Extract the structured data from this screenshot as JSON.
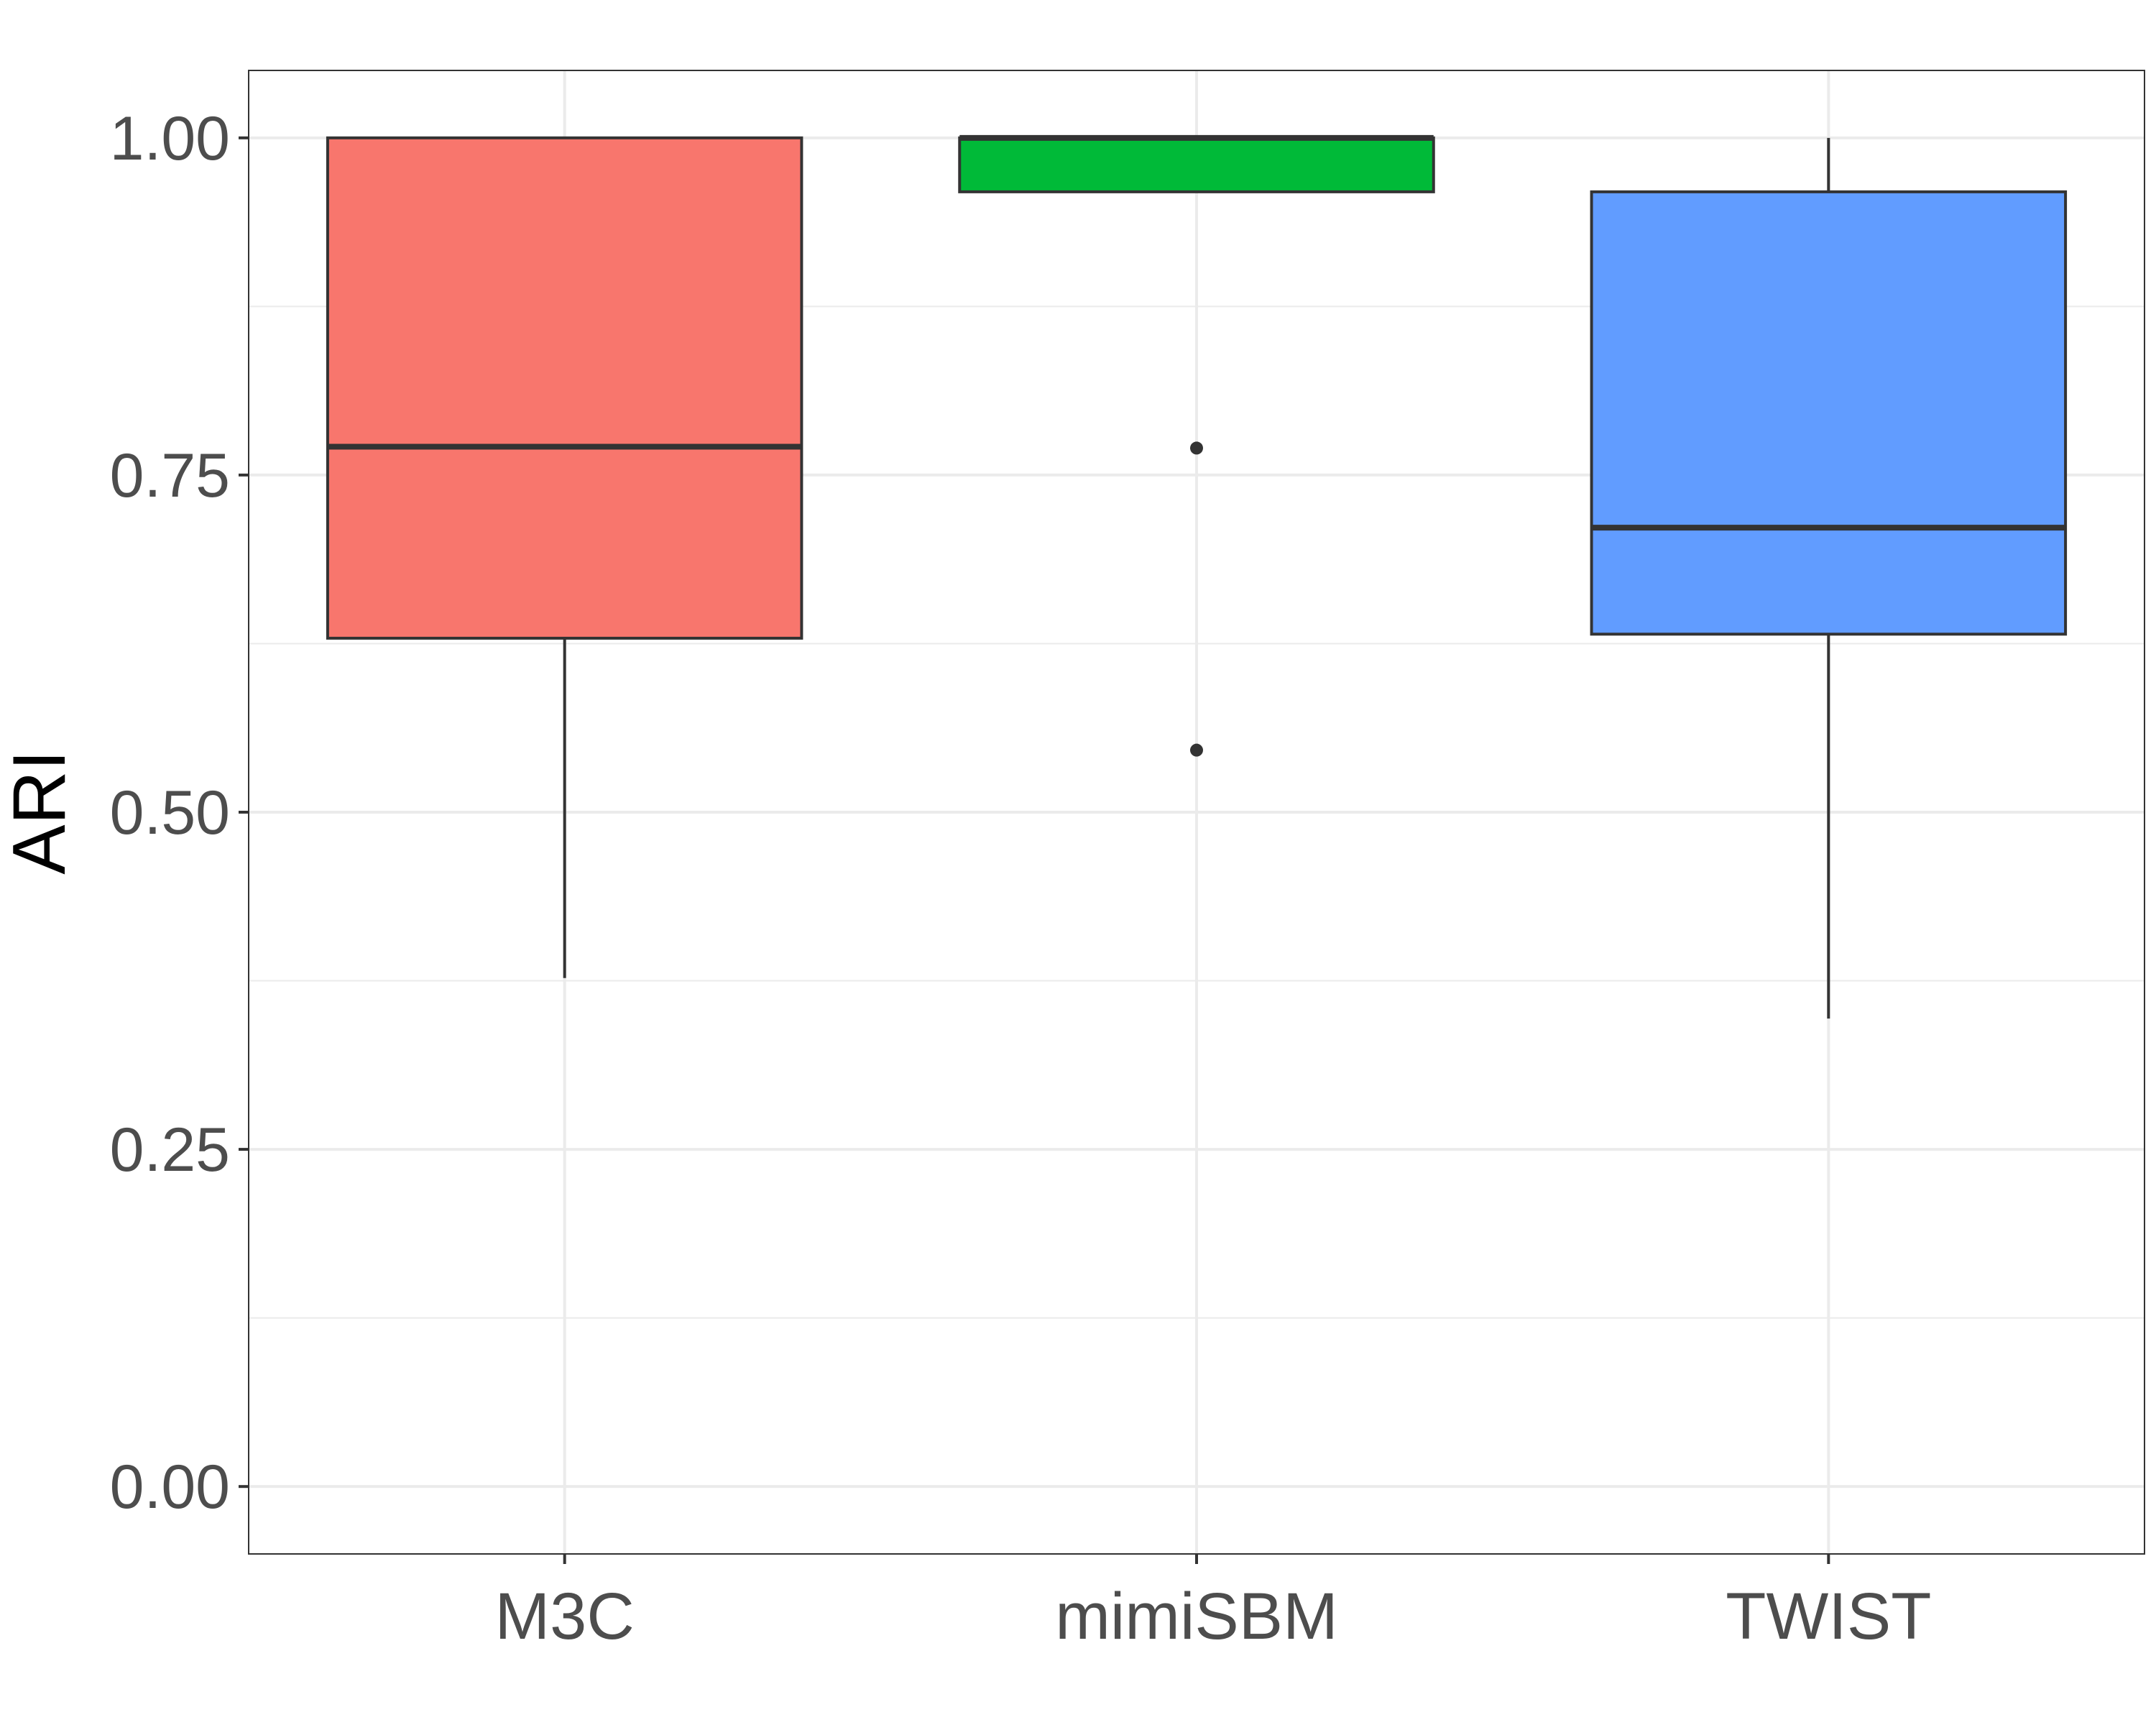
{
  "chart_data": {
    "type": "boxplot",
    "title": "",
    "xlabel": "",
    "ylabel": "ARI",
    "ylim": [
      -0.05,
      1.05
    ],
    "yticks": [
      0.0,
      0.25,
      0.5,
      0.75,
      1.0
    ],
    "ytick_labels": [
      "0.00",
      "0.25",
      "0.50",
      "0.75",
      "1.00"
    ],
    "grid": true,
    "legend": "none",
    "categories": [
      "M3C",
      "mimiSBM",
      "TWIST"
    ],
    "boxes": [
      {
        "category": "M3C",
        "color": "#F8766D",
        "whisker_low": 0.377,
        "q1": 0.629,
        "median": 0.771,
        "q3": 1.0,
        "whisker_high": 1.0,
        "outliers": []
      },
      {
        "category": "mimiSBM",
        "color": "#00BA38",
        "whisker_low": 0.96,
        "q1": 0.96,
        "median": 1.0,
        "q3": 1.0,
        "whisker_high": 1.0,
        "outliers": [
          0.77,
          0.546
        ]
      },
      {
        "category": "TWIST",
        "color": "#619CFF",
        "whisker_low": 0.347,
        "q1": 0.632,
        "median": 0.711,
        "q3": 0.96,
        "whisker_high": 1.0,
        "outliers": []
      }
    ]
  }
}
